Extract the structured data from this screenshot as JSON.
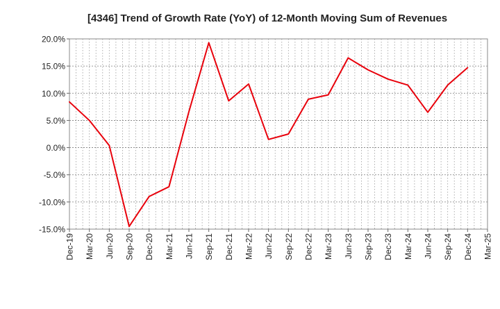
{
  "chart_data": {
    "type": "line",
    "title": "[4346]  Trend of Growth Rate (YoY) of 12-Month Moving Sum of Revenues",
    "xlabel": "",
    "ylabel": "",
    "grid": true,
    "legend": "none",
    "line_color": "#e8000b",
    "ylim": [
      -15.0,
      20.0
    ],
    "yticks": [
      20.0,
      15.0,
      10.0,
      5.0,
      0.0,
      -5.0,
      -10.0,
      -15.0
    ],
    "ytick_labels": [
      "20.0%",
      "15.0%",
      "10.0%",
      "5.0%",
      "0.0%",
      "-5.0%",
      "-10.0%",
      "-15.0%"
    ],
    "xtick_labels": [
      "Dec-19",
      "Mar-20",
      "Jun-20",
      "Sep-20",
      "Dec-20",
      "Mar-21",
      "Jun-21",
      "Sep-21",
      "Dec-21",
      "Mar-22",
      "Jun-22",
      "Sep-22",
      "Dec-22",
      "Mar-23",
      "Jun-23",
      "Sep-23",
      "Dec-23",
      "Mar-24",
      "Jun-24",
      "Sep-24",
      "Dec-24",
      "Mar-25"
    ],
    "x": [
      "Dec-19",
      "Mar-20",
      "Jun-20",
      "Sep-20",
      "Dec-20",
      "Mar-21",
      "Jun-21",
      "Sep-21",
      "Dec-21",
      "Mar-22",
      "Jun-22",
      "Sep-22",
      "Dec-22",
      "Mar-23",
      "Jun-23",
      "Sep-23",
      "Dec-23",
      "Mar-24",
      "Jun-24",
      "Sep-24",
      "Dec-24"
    ],
    "values": [
      8.4,
      5.0,
      0.4,
      -14.5,
      -9.0,
      -7.2,
      6.6,
      19.3,
      8.6,
      11.7,
      1.5,
      2.5,
      8.9,
      9.7,
      16.5,
      14.3,
      12.6,
      11.5,
      6.5,
      11.5,
      14.7
    ]
  }
}
